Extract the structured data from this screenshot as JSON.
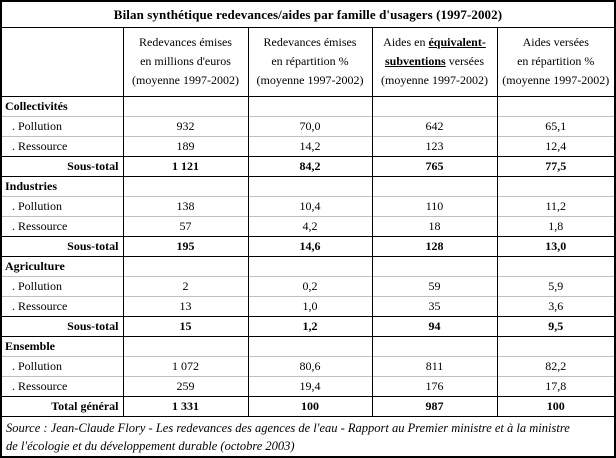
{
  "title": "Bilan synthétique redevances/aides par famille d'usagers (1997-2002)",
  "columns": [
    {
      "line1": "Redevances émises",
      "line2": "en millions d'euros",
      "line3": "(moyenne 1997-2002)"
    },
    {
      "line1": "Redevances émises",
      "line2": "en répartition %",
      "line3": "(moyenne 1997-2002)"
    },
    {
      "line1_pre": "Aides en ",
      "line1_emph": "équivalent-",
      "line2_emph": "subventions",
      "line2_post": " versées",
      "line3": "(moyenne 1997-2002)"
    },
    {
      "line1": "Aides versées",
      "line2": "en répartition %",
      "line3": "(moyenne 1997-2002)"
    }
  ],
  "sections": [
    {
      "name": "Collectivités",
      "rows": [
        {
          "label": ". Pollution",
          "values": [
            "932",
            "70,0",
            "642",
            "65,1"
          ]
        },
        {
          "label": ". Ressource",
          "values": [
            "189",
            "14,2",
            "123",
            "12,4"
          ]
        }
      ],
      "total": {
        "label": "Sous-total",
        "values": [
          "1 121",
          "84,2",
          "765",
          "77,5"
        ]
      }
    },
    {
      "name": "Industries",
      "rows": [
        {
          "label": ". Pollution",
          "values": [
            "138",
            "10,4",
            "110",
            "11,2"
          ]
        },
        {
          "label": ". Ressource",
          "values": [
            "57",
            "4,2",
            "18",
            "1,8"
          ]
        }
      ],
      "total": {
        "label": "Sous-total",
        "values": [
          "195",
          "14,6",
          "128",
          "13,0"
        ]
      }
    },
    {
      "name": "Agriculture",
      "rows": [
        {
          "label": ". Pollution",
          "values": [
            "2",
            "0,2",
            "59",
            "5,9"
          ]
        },
        {
          "label": ". Ressource",
          "values": [
            "13",
            "1,0",
            "35",
            "3,6"
          ]
        }
      ],
      "total": {
        "label": "Sous-total",
        "values": [
          "15",
          "1,2",
          "94",
          "9,5"
        ]
      }
    },
    {
      "name": "Ensemble",
      "rows": [
        {
          "label": ". Pollution",
          "values": [
            "1 072",
            "80,6",
            "811",
            "82,2"
          ]
        },
        {
          "label": ". Ressource",
          "values": [
            "259",
            "19,4",
            "176",
            "17,8"
          ]
        }
      ],
      "total": {
        "label": "Total général",
        "values": [
          "1 331",
          "100",
          "987",
          "100"
        ]
      }
    }
  ],
  "footer": {
    "line1": "Source : Jean-Claude Flory - Les redevances des agences de l'eau - Rapport au Premier ministre et à la ministre",
    "line2": "de l'écologie et du développement durable (octobre 2003)"
  }
}
